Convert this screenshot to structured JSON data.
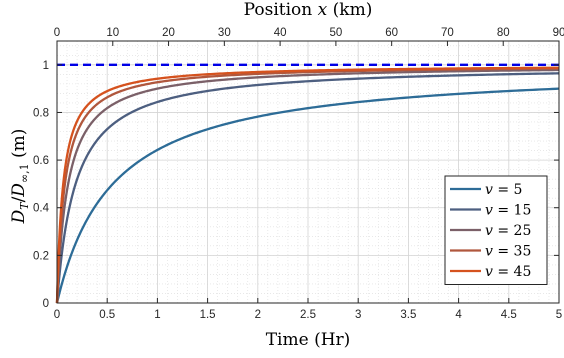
{
  "chart_data": {
    "type": "line",
    "title": "",
    "xlabel": "Time (Hr)",
    "xlabel_top": "Position x (km)",
    "ylabel": "D_T/D_∞,1 (m)",
    "xlim": [
      0,
      5
    ],
    "xlim_top": [
      0,
      90
    ],
    "ylim": [
      0,
      1.1
    ],
    "xticks": [
      "0",
      "0.5",
      "1",
      "1.5",
      "2",
      "2.5",
      "3",
      "3.5",
      "4",
      "4.5",
      "5"
    ],
    "xticks_top": [
      "0",
      "10",
      "20",
      "30",
      "40",
      "50",
      "60",
      "70",
      "80",
      "90"
    ],
    "yticks": [
      "0",
      "0.2",
      "0.4",
      "0.6",
      "0.8",
      "1"
    ],
    "grid": true,
    "minor_grid": true,
    "legend_position": "bottom-right",
    "reference_line": {
      "y": 1,
      "style": "dashed",
      "color": "#0000e6"
    },
    "series": [
      {
        "name": "v = 5",
        "legend_symbol": "v",
        "legend_value": "5",
        "color": "#2d6c97",
        "tau": 0.556,
        "x": [
          0,
          0.1,
          0.25,
          0.5,
          0.75,
          1,
          1.5,
          2,
          2.5,
          3,
          3.5,
          4,
          4.5,
          5
        ],
        "y": [
          0,
          0.15,
          0.31,
          0.47,
          0.57,
          0.64,
          0.73,
          0.78,
          0.82,
          0.84,
          0.86,
          0.88,
          0.89,
          0.9
        ]
      },
      {
        "name": "v = 15",
        "legend_symbol": "v",
        "legend_value": "15",
        "color": "#4d5f80",
        "tau": 0.185,
        "x": [
          0,
          0.1,
          0.25,
          0.5,
          0.75,
          1,
          1.5,
          2,
          2.5,
          3,
          3.5,
          4,
          4.5,
          5
        ],
        "y": [
          0,
          0.35,
          0.57,
          0.73,
          0.8,
          0.84,
          0.89,
          0.92,
          0.93,
          0.94,
          0.95,
          0.96,
          0.96,
          0.96
        ]
      },
      {
        "name": "v = 25",
        "legend_symbol": "v",
        "legend_value": "25",
        "color": "#7b6068",
        "tau": 0.111,
        "x": [
          0,
          0.1,
          0.25,
          0.5,
          0.75,
          1,
          1.5,
          2,
          2.5,
          3,
          3.5,
          4,
          4.5,
          5
        ],
        "y": [
          0,
          0.47,
          0.69,
          0.82,
          0.87,
          0.9,
          0.93,
          0.95,
          0.96,
          0.96,
          0.97,
          0.97,
          0.98,
          0.98
        ]
      },
      {
        "name": "v = 35",
        "legend_symbol": "v",
        "legend_value": "35",
        "color": "#b0573d",
        "tau": 0.079,
        "x": [
          0,
          0.1,
          0.25,
          0.5,
          0.75,
          1,
          1.5,
          2,
          2.5,
          3,
          3.5,
          4,
          4.5,
          5
        ],
        "y": [
          0,
          0.56,
          0.76,
          0.86,
          0.9,
          0.93,
          0.95,
          0.96,
          0.97,
          0.97,
          0.98,
          0.98,
          0.98,
          0.98
        ]
      },
      {
        "name": "v = 45",
        "legend_symbol": "v",
        "legend_value": "45",
        "color": "#d5521e",
        "tau": 0.062,
        "x": [
          0,
          0.1,
          0.25,
          0.5,
          0.75,
          1,
          1.5,
          2,
          2.5,
          3,
          3.5,
          4,
          4.5,
          5
        ],
        "y": [
          0,
          0.62,
          0.8,
          0.89,
          0.92,
          0.94,
          0.96,
          0.97,
          0.98,
          0.98,
          0.98,
          0.98,
          0.99,
          0.99
        ]
      }
    ]
  }
}
